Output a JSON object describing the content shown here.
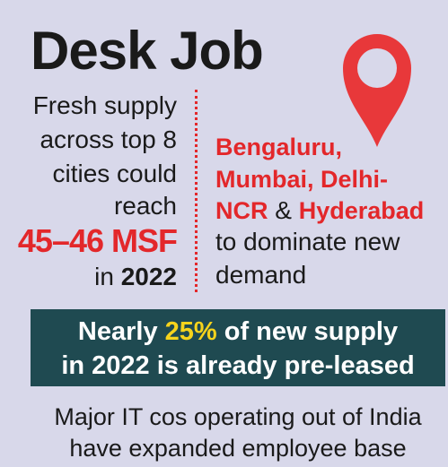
{
  "title": "Desk Job",
  "left": {
    "lines": [
      "Fresh supply",
      "across top 8",
      "cities could",
      "reach"
    ],
    "figure": "45–46 MSF",
    "last": {
      "prefix": "in",
      "year": "2022"
    }
  },
  "right": {
    "cities": {
      "line1": "Bengaluru,",
      "line2": "Mumbai, Delhi-",
      "line3": {
        "city1": "NCR",
        "joiner": "&",
        "city2": "Hyderabad"
      }
    },
    "lines": [
      "to dominate new",
      "demand"
    ]
  },
  "banner": {
    "line1": {
      "prefix": "Nearly",
      "highlight": "25%",
      "suffix": "of new supply"
    },
    "line2": "in 2022 is already pre-leased"
  },
  "footer": [
    "Major IT cos operating out of India",
    "have expanded employee base"
  ]
}
